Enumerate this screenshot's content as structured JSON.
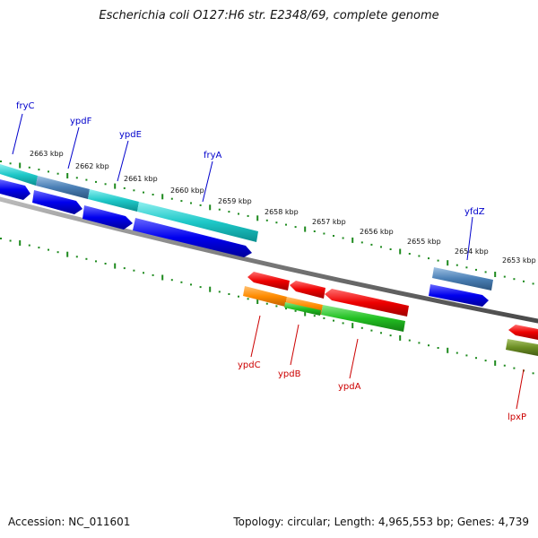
{
  "title": "Escherichia coli O127:H6 str. E2348/69, complete genome",
  "accession": "Accession: NC_011601",
  "topology": "Topology: circular; Length: 4,965,553 bp; Genes: 4,739",
  "colors": {
    "backbone": "#7a7a7a",
    "ticks": "#1e8a1e",
    "forward_cds": "#0000ee",
    "forward_gene": "#1ec8c8",
    "forward_gene_alt": "#4a7fb5",
    "reverse_cds": "#ee0000",
    "reverse_gene": "#22c022",
    "reverse_gene_alt": "#ff8c00",
    "reverse_gene_alt2": "#6b8e23",
    "forward_label": "#0000cc",
    "reverse_label": "#cc0000"
  },
  "scale_labels": [
    "2663 kbp",
    "2662 kbp",
    "2661 kbp",
    "2660 kbp",
    "2659 kbp",
    "2658 kbp",
    "2657 kbp",
    "2656 kbp",
    "2655 kbp",
    "2654 kbp",
    "2653 kbp"
  ],
  "forward_genes": [
    "fryC",
    "ypdF",
    "ypdE",
    "fryA",
    "yfdZ"
  ],
  "reverse_genes": [
    "ypdC",
    "ypdB",
    "ypdA",
    "lpxP"
  ]
}
